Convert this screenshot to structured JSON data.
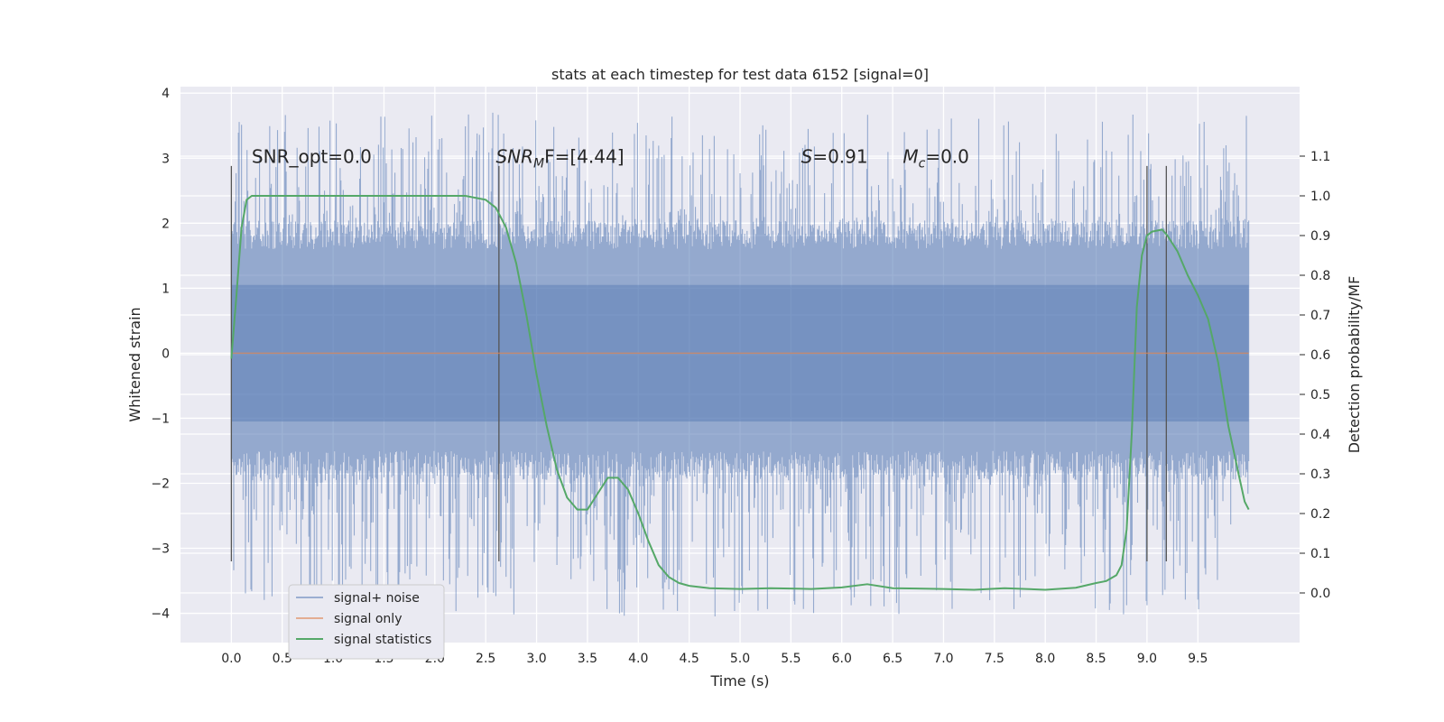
{
  "chart_data": {
    "type": "line",
    "title": "stats at each timestep for test data 6152 [signal=0]",
    "xlabel": "Time (s)",
    "ylabel": "Whitened strain",
    "y2label": "Detection probability/MF",
    "xlim": [
      -0.5,
      10.5
    ],
    "ylim": [
      -4.45,
      4.1
    ],
    "y2lim": [
      -0.125,
      1.275
    ],
    "xticks": [
      "0.0",
      "0.5",
      "1.0",
      "1.5",
      "2.0",
      "2.5",
      "3.0",
      "3.5",
      "4.0",
      "4.5",
      "5.0",
      "5.5",
      "6.0",
      "6.5",
      "7.0",
      "7.5",
      "8.0",
      "8.5",
      "9.0",
      "9.5"
    ],
    "yticks": [
      "4",
      "3",
      "2",
      "1",
      "0",
      "−1",
      "−2",
      "−3",
      "−4"
    ],
    "y2ticks": [
      "1.1",
      "1.0",
      "0.9",
      "0.8",
      "0.7",
      "0.6",
      "0.5",
      "0.4",
      "0.3",
      "0.2",
      "0.1",
      "0.0"
    ],
    "grid": true,
    "legend_position": "lower-left",
    "annotations": [
      {
        "text": "SNR_opt=0.0",
        "x": 0.2,
        "y": 2.93
      },
      {
        "text": "SNR",
        "sub": "M",
        "rest": "F=[4.44]",
        "x": 2.6,
        "y": 2.93
      },
      {
        "text": "S",
        "rest": "=0.91",
        "x": 5.6,
        "y": 2.93
      },
      {
        "text": "M",
        "sub": "c",
        "rest": "=0.0",
        "x": 6.6,
        "y": 2.93
      }
    ],
    "vlines": [
      {
        "x": 0.0,
        "ymin": -3.2,
        "ymax": 2.88
      },
      {
        "x": 2.63,
        "ymin": -3.2,
        "ymax": 2.88
      },
      {
        "x": 9.0,
        "ymin": -3.2,
        "ymax": 2.88
      },
      {
        "x": 9.19,
        "ymin": -3.2,
        "ymax": 2.88
      }
    ],
    "series": [
      {
        "name": "signal+ noise",
        "color": "#4c72b0",
        "axis": "left",
        "x_range": [
          0.0,
          10.0
        ],
        "band_core": [
          -1.5,
          1.6
        ],
        "spike_max": 3.7,
        "spike_min": -4.05
      },
      {
        "name": "signal only",
        "color": "#dd8452",
        "axis": "left",
        "x": [
          0.0,
          10.0
        ],
        "y": [
          0.0,
          0.0
        ]
      },
      {
        "name": "signal statistics",
        "color": "#55a868",
        "axis": "right",
        "x": [
          0.0,
          0.05,
          0.1,
          0.15,
          0.2,
          0.3,
          0.5,
          1.0,
          1.5,
          2.0,
          2.3,
          2.5,
          2.6,
          2.7,
          2.8,
          2.9,
          3.0,
          3.1,
          3.2,
          3.3,
          3.4,
          3.5,
          3.6,
          3.7,
          3.8,
          3.9,
          4.0,
          4.1,
          4.2,
          4.3,
          4.4,
          4.5,
          4.7,
          5.0,
          5.3,
          5.7,
          6.0,
          6.25,
          6.5,
          7.0,
          7.3,
          7.6,
          8.0,
          8.3,
          8.5,
          8.6,
          8.7,
          8.75,
          8.8,
          8.85,
          8.9,
          8.95,
          9.0,
          9.05,
          9.15,
          9.2,
          9.3,
          9.4,
          9.5,
          9.6,
          9.7,
          9.8,
          9.9,
          9.96,
          10.0
        ],
        "y": [
          0.59,
          0.75,
          0.92,
          0.99,
          1.0,
          1.0,
          1.0,
          1.0,
          1.0,
          1.0,
          1.0,
          0.99,
          0.97,
          0.92,
          0.83,
          0.7,
          0.55,
          0.42,
          0.31,
          0.24,
          0.21,
          0.21,
          0.25,
          0.29,
          0.29,
          0.26,
          0.2,
          0.13,
          0.07,
          0.04,
          0.025,
          0.018,
          0.012,
          0.01,
          0.012,
          0.01,
          0.014,
          0.022,
          0.012,
          0.01,
          0.008,
          0.012,
          0.008,
          0.013,
          0.025,
          0.03,
          0.045,
          0.07,
          0.16,
          0.4,
          0.72,
          0.85,
          0.9,
          0.91,
          0.915,
          0.9,
          0.86,
          0.8,
          0.75,
          0.69,
          0.58,
          0.42,
          0.3,
          0.23,
          0.21
        ]
      }
    ]
  }
}
